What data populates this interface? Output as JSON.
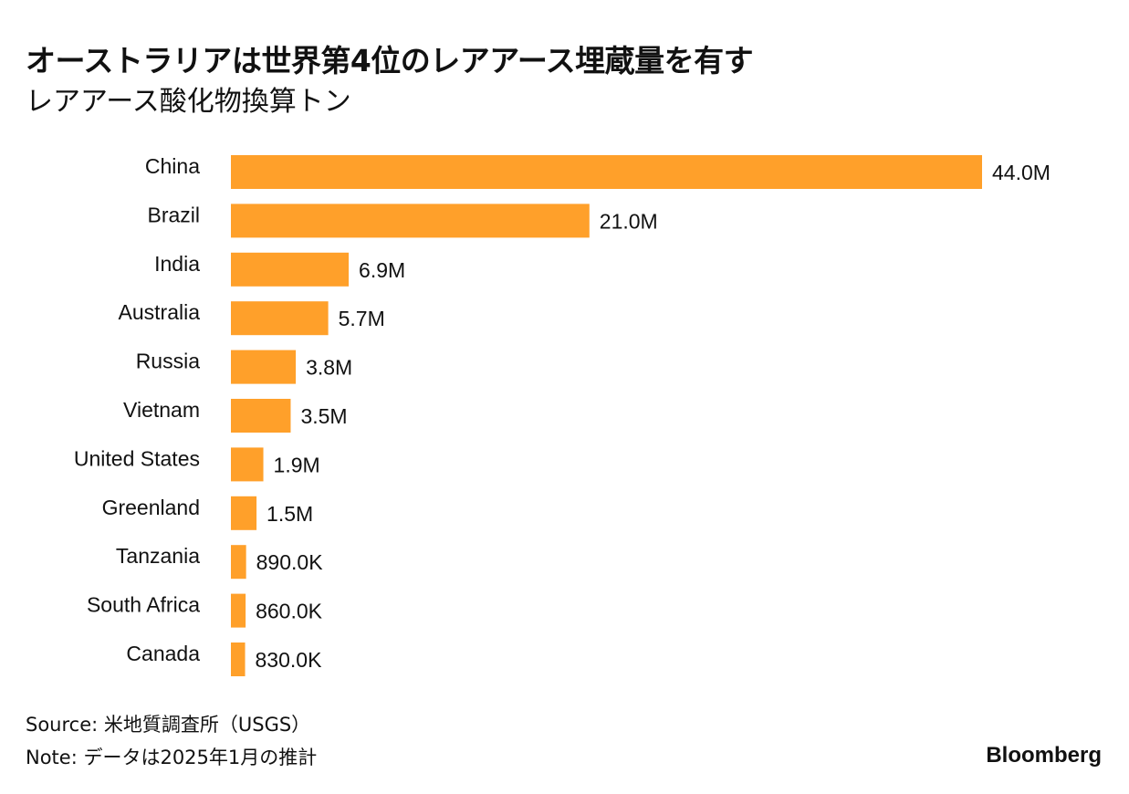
{
  "header": {
    "title": "オーストラリアは世界第4位のレアアース埋蔵量を有す",
    "subtitle": "レアアース酸化物換算トン"
  },
  "footer": {
    "source": "Source: 米地質調査所（USGS）",
    "note": "Note: データは2025年1月の推計",
    "brand": "Bloomberg"
  },
  "colors": {
    "bar": "#FFA02A",
    "text": "#111111"
  },
  "chart_data": {
    "type": "bar",
    "orientation": "horizontal",
    "categories": [
      "China",
      "Brazil",
      "India",
      "Australia",
      "Russia",
      "Vietnam",
      "United States",
      "Greenland",
      "Tanzania",
      "South Africa",
      "Canada"
    ],
    "values": [
      44000000,
      21000000,
      6900000,
      5700000,
      3800000,
      3500000,
      1900000,
      1500000,
      890000,
      860000,
      830000
    ],
    "value_labels": [
      "44.0M",
      "21.0M",
      "6.9M",
      "5.7M",
      "3.8M",
      "3.5M",
      "1.9M",
      "1.5M",
      "890.0K",
      "860.0K",
      "830.0K"
    ],
    "title": "オーストラリアは世界第4位のレアアース埋蔵量を有す",
    "subtitle": "レアアース酸化物換算トン",
    "xlabel": "",
    "ylabel": "",
    "xlim": [
      0,
      44000000
    ],
    "grid": false,
    "legend": "none"
  }
}
